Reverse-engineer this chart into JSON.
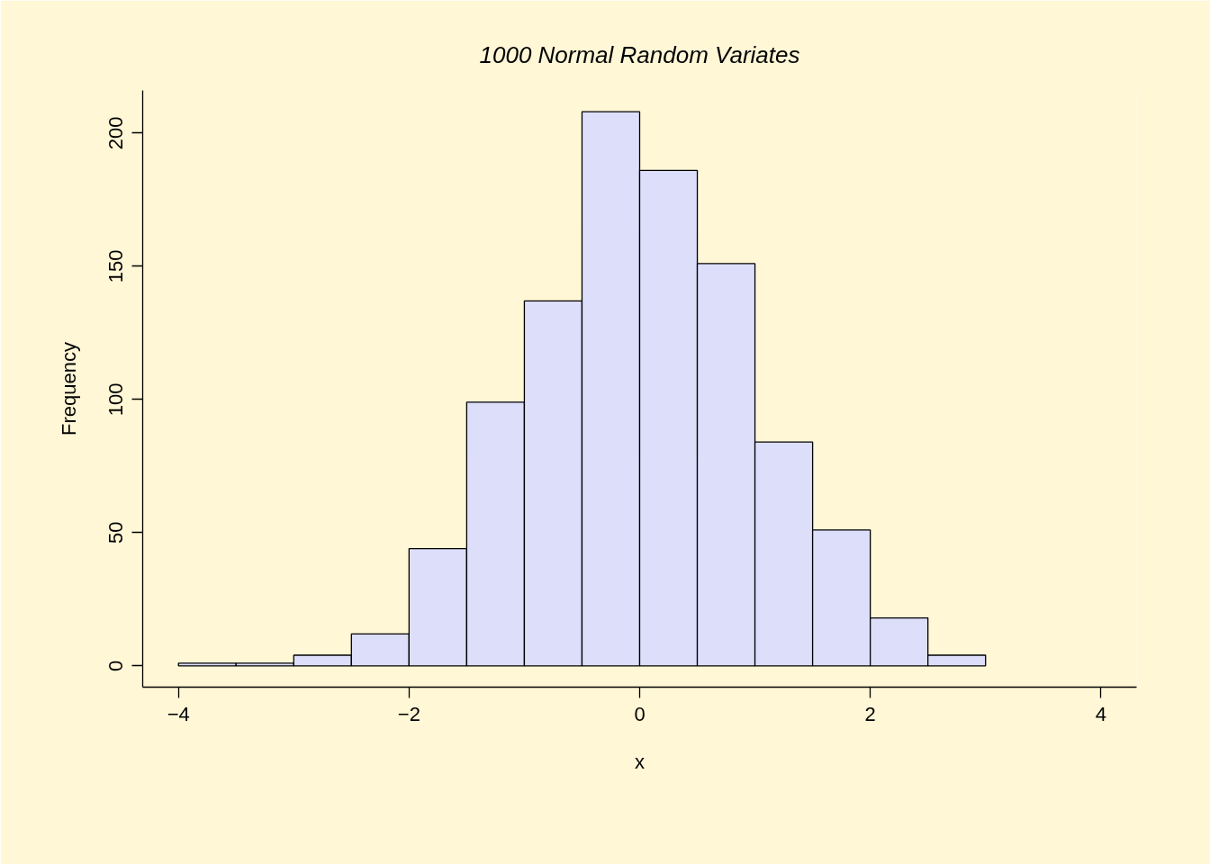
{
  "chart_data": {
    "type": "histogram",
    "title": "1000 Normal Random Variates",
    "xlabel": "x",
    "ylabel": "Frequency",
    "bins": [
      -4,
      -3.5,
      -3,
      -2.5,
      -2,
      -1.5,
      -1,
      -0.5,
      0,
      0.5,
      1,
      1.5,
      2,
      2.5,
      3
    ],
    "values": [
      1,
      1,
      4,
      12,
      44,
      99,
      137,
      208,
      186,
      151,
      84,
      51,
      18,
      4
    ],
    "color": "#dddefa",
    "xlim": [
      -4.31,
      4.31
    ],
    "ylim": [
      -8,
      216
    ],
    "xticks": [
      -4,
      -2,
      0,
      2,
      4
    ],
    "yticks": [
      0,
      50,
      100,
      150,
      200
    ],
    "grid": false
  }
}
